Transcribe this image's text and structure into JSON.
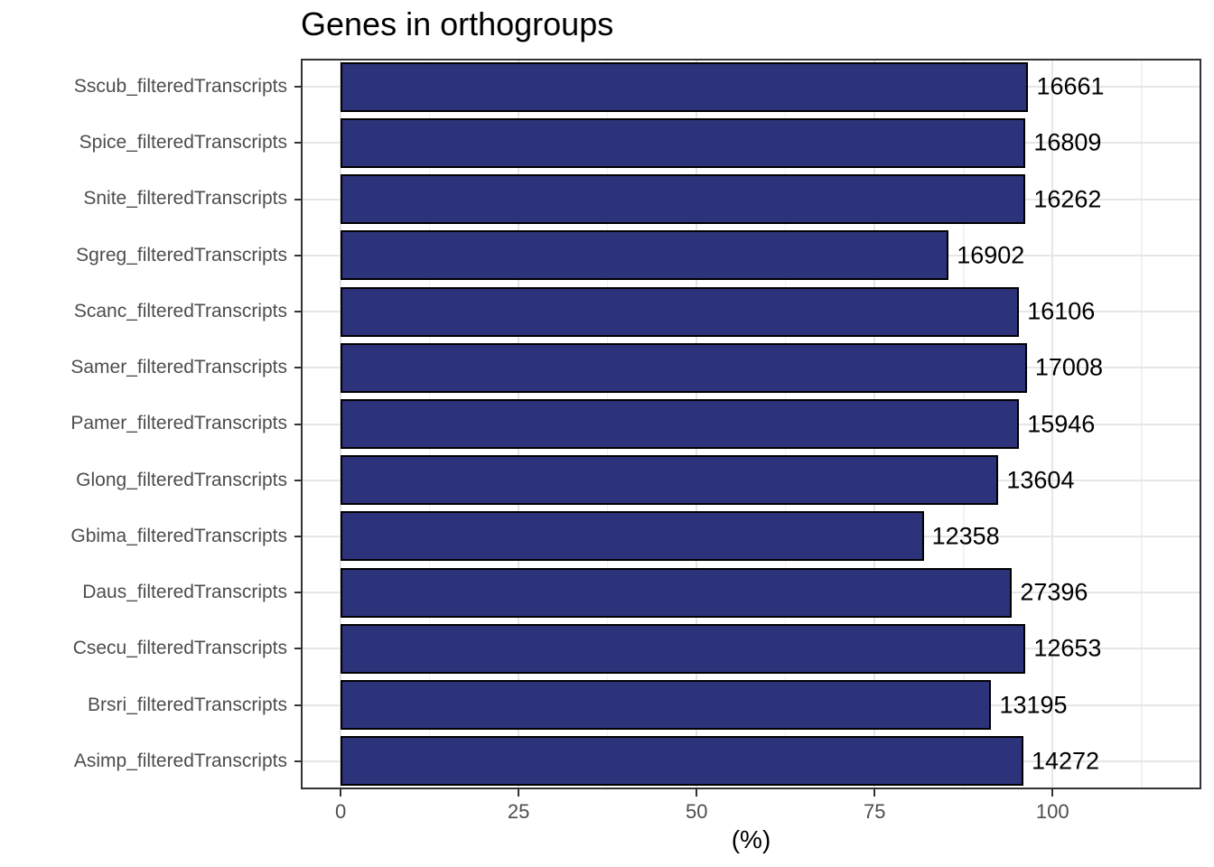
{
  "title": "Genes in orthogroups",
  "chart_data": {
    "type": "bar",
    "orientation": "horizontal",
    "title": "Genes in orthogroups",
    "xlabel": "(%)",
    "ylabel": "",
    "grid": true,
    "legend": false,
    "x_ticks": [
      0,
      25,
      50,
      75,
      100
    ],
    "x_minor_gridlines": [
      12.5,
      37.5,
      62.5,
      87.5,
      112.5
    ],
    "xlim_panel": [
      -5.6,
      120.9
    ],
    "categories": [
      "Sscub_filteredTranscripts",
      "Spice_filteredTranscripts",
      "Snite_filteredTranscripts",
      "Sgreg_filteredTranscripts",
      "Scanc_filteredTranscripts",
      "Samer_filteredTranscripts",
      "Pamer_filteredTranscripts",
      "Glong_filteredTranscripts",
      "Gbima_filteredTranscripts",
      "Daus_filteredTranscripts",
      "Csecu_filteredTranscripts",
      "Brsri_filteredTranscripts",
      "Asimp_filteredTranscripts"
    ],
    "values_percent": [
      96.6,
      96.2,
      96.2,
      85.4,
      95.3,
      96.4,
      95.3,
      92.4,
      81.9,
      94.3,
      96.2,
      91.4,
      95.9
    ],
    "bar_labels": [
      "16661",
      "16809",
      "16262",
      "16902",
      "16106",
      "17008",
      "15946",
      "13604",
      "12358",
      "27396",
      "12653",
      "13195",
      "14272"
    ],
    "colors": {
      "bar_fill": "#2D337B",
      "bar_stroke": "#000000",
      "axis_text": "#4D4D4D",
      "title_text": "#000000",
      "grid_major": "#E6E6E6",
      "grid_minor": "#F2F2F2",
      "panel_border": "#333333"
    }
  }
}
